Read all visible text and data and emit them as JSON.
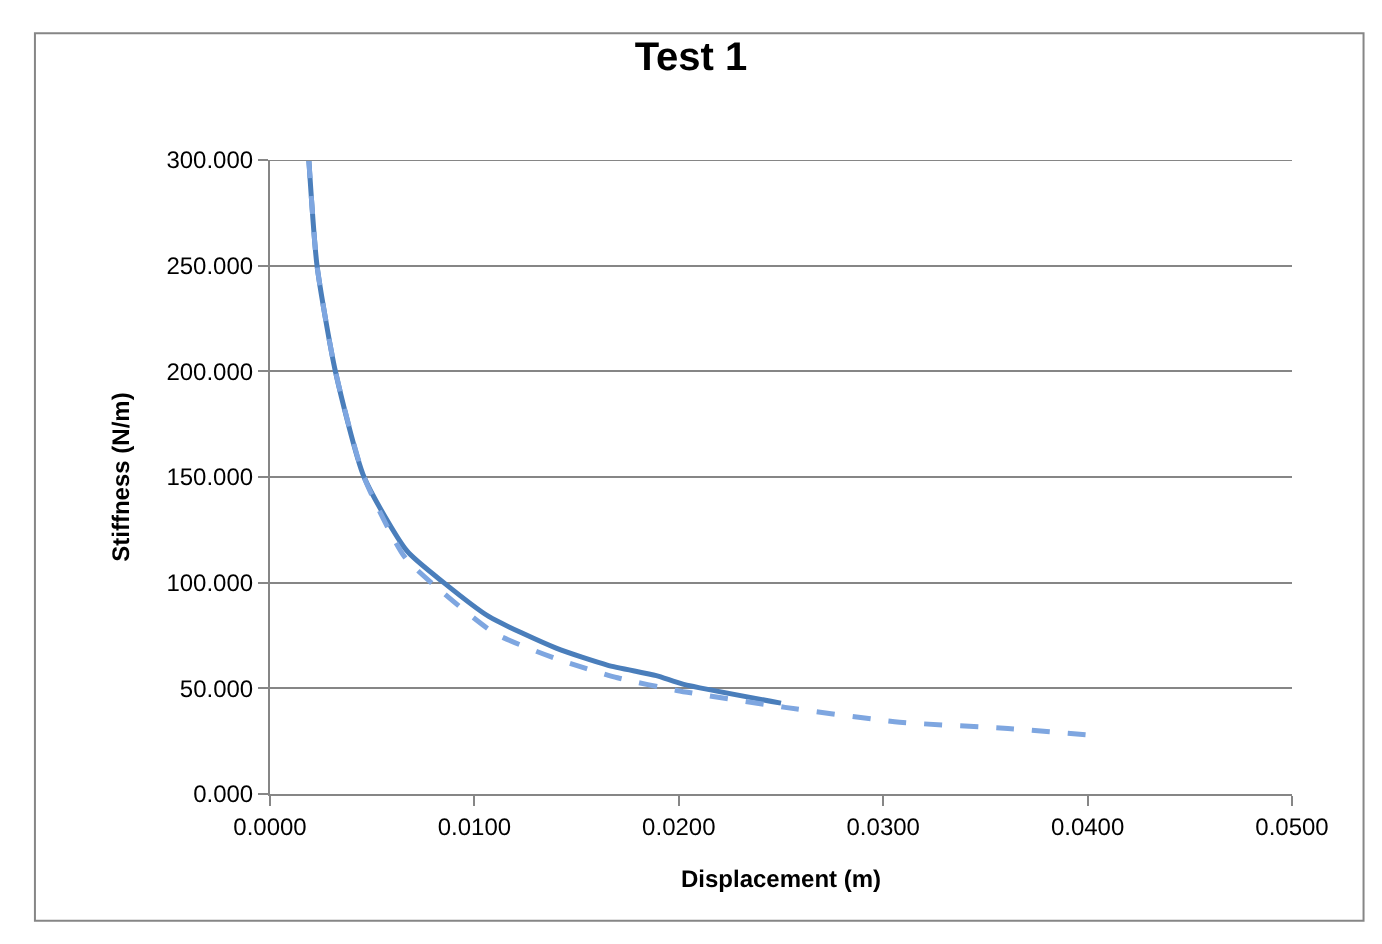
{
  "chart_data": {
    "type": "line",
    "title": "Test 1",
    "xlabel": "Displacement (m)",
    "ylabel": "Stiffness (N/m)",
    "series": [
      {
        "color": "#4a7ebb",
        "line_style": "solid",
        "x": [
          0.0019,
          0.0023,
          0.0032,
          0.0046,
          0.0067,
          0.0085,
          0.0107,
          0.014,
          0.0165,
          0.0189,
          0.0202,
          0.025
        ],
        "values": [
          300,
          250,
          200,
          150,
          115,
          100,
          84,
          69,
          61,
          56,
          52,
          43
        ]
      },
      {
        "color": "#7ea6e0",
        "line_style": "dashed",
        "x": [
          0.0019,
          0.0023,
          0.0032,
          0.0046,
          0.0066,
          0.0085,
          0.011,
          0.014,
          0.017,
          0.0199,
          0.0252,
          0.0308,
          0.0361,
          0.0399
        ],
        "values": [
          300,
          250,
          200,
          150,
          112,
          95,
          76,
          64,
          55,
          49,
          41,
          34,
          31,
          28
        ]
      }
    ],
    "xlim": [
      0,
      0.05
    ],
    "xticks": [
      {
        "value": 0,
        "label": "0.0000"
      },
      {
        "value": 0.01,
        "label": "0.0100"
      },
      {
        "value": 0.02,
        "label": "0.0200"
      },
      {
        "value": 0.03,
        "label": "0.0300"
      },
      {
        "value": 0.04,
        "label": "0.0400"
      },
      {
        "value": 0.05,
        "label": "0.0500"
      }
    ],
    "ylim": [
      0,
      300
    ],
    "yticks": [
      {
        "value": 0,
        "label": "0.000"
      },
      {
        "value": 50,
        "label": "50.000"
      },
      {
        "value": 100,
        "label": "100.000"
      },
      {
        "value": 150,
        "label": "150.000"
      },
      {
        "value": 200,
        "label": "200.000"
      },
      {
        "value": 250,
        "label": "250.000"
      },
      {
        "value": 300,
        "label": "300.000"
      }
    ],
    "grid": "y",
    "marker": "none"
  }
}
